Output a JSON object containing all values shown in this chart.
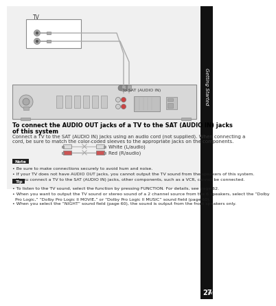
{
  "bg_color": "#ffffff",
  "title_line1": "To connect the AUDIO OUT jacks of a TV to the SAT (AUDIO IN) jacks",
  "title_line2": "of this system",
  "body_text1": "Connect a TV to the SAT (AUDIO IN) jacks using an audio cord (not supplied). When connecting a",
  "body_text2": "cord, be sure to match the color-coded sleeves to the appropriate jacks on the components.",
  "white_label": "White (L/audio)",
  "red_label": "Red (R/audio)",
  "note_label": "Note",
  "note_bullet1": "Be sure to make connections securely to avoid hum and noise.",
  "note_bullet2": "If your TV does not have AUDIO OUT jacks, you cannot output the TV sound from the speakers of this system.",
  "note_bullet3": "If you connect a TV to the SAT (AUDIO IN) jacks, other components, such as a VCR, cannot be connected.",
  "tip_label": "Tip",
  "tip_bullet1": "To listen to the TV sound, select the function by pressing FUNCTION. For details, see page 62.",
  "tip_bullet2a": "When you want to output the TV sound or stereo sound of a 2 channel source from the 6 speakers, select the “Dolby",
  "tip_bullet2b": "Pro Logic,” “Dolby Pro Logic II MOVIE,” or “Dolby Pro Logic II MUSIC” sound field (page 60).",
  "tip_bullet3": "When you select the “NIGHT” sound field (page 60), the sound is output from the front speakers only.",
  "tab_text": "Getting Started",
  "page_num": "27",
  "tv_label": "TV",
  "sat_label": "To SAT (AUDIO IN)"
}
